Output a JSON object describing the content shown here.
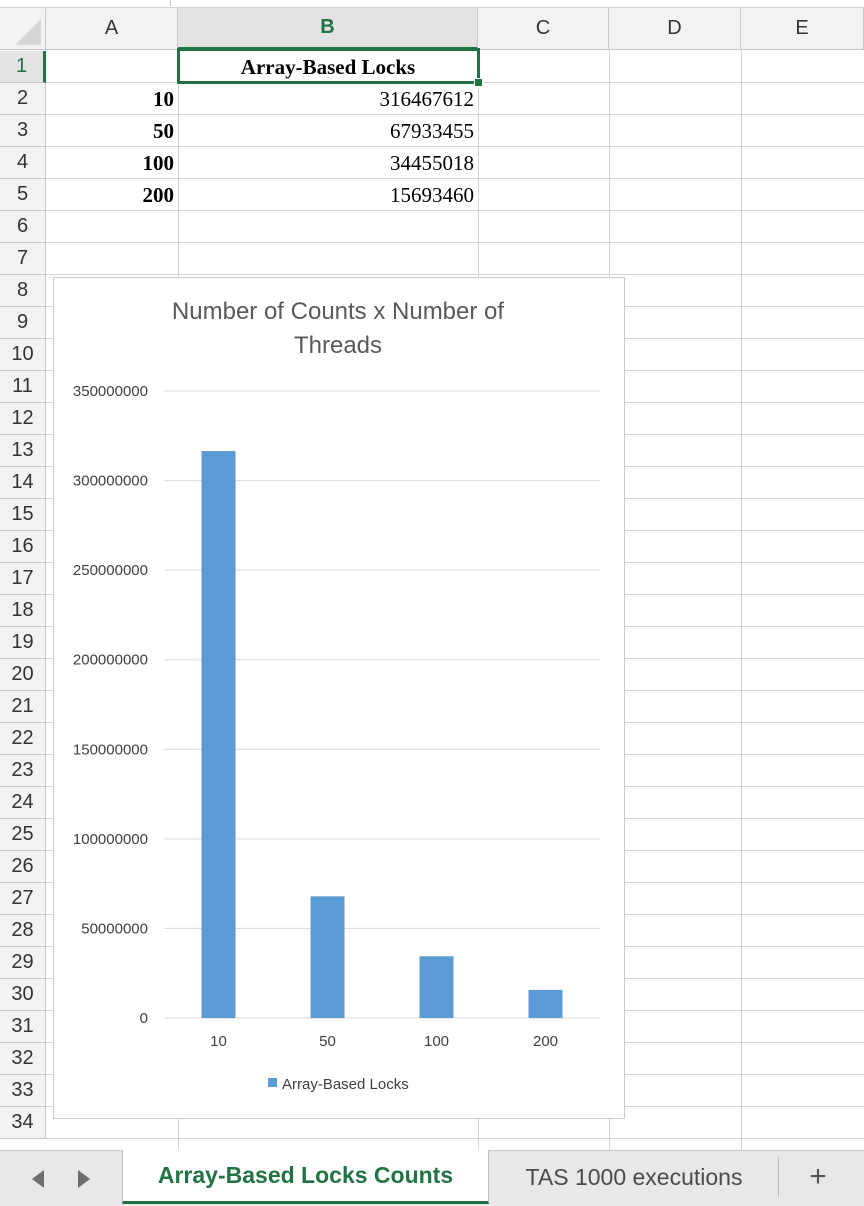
{
  "columns": [
    "A",
    "B",
    "C",
    "D",
    "E"
  ],
  "rows": [
    "1",
    "2",
    "3",
    "4",
    "5",
    "6",
    "7",
    "8",
    "9",
    "10",
    "11",
    "12",
    "13",
    "14",
    "15",
    "16",
    "17",
    "18",
    "19",
    "20",
    "21",
    "22",
    "23",
    "24",
    "25",
    "26",
    "27",
    "28",
    "29",
    "30",
    "31",
    "32",
    "33",
    "34"
  ],
  "cells": {
    "B1": "Array-Based Locks",
    "A2": "10",
    "B2": "316467612",
    "A3": "50",
    "B3": "67933455",
    "A4": "100",
    "B4": "34455018",
    "A5": "200",
    "B5": "15693460"
  },
  "chart_data": {
    "type": "bar",
    "title_lines": [
      "Number of Counts x Number of",
      "Threads"
    ],
    "categories": [
      "10",
      "50",
      "100",
      "200"
    ],
    "series": [
      {
        "name": "Array-Based Locks",
        "values": [
          316467612,
          67933455,
          34455018,
          15693460
        ],
        "color": "#5b9bd5"
      }
    ],
    "ylim": [
      0,
      350000000
    ],
    "yticks": [
      "0",
      "50000000",
      "100000000",
      "150000000",
      "200000000",
      "250000000",
      "300000000",
      "350000000"
    ],
    "legend_position": "bottom",
    "grid": true
  },
  "tabs": {
    "active": "Array-Based Locks Counts",
    "other": "TAS 1000 executions",
    "add": "+"
  },
  "colors": {
    "accent": "#217346",
    "bar": "#5b9bd5",
    "grid": "#d9d9d9"
  }
}
